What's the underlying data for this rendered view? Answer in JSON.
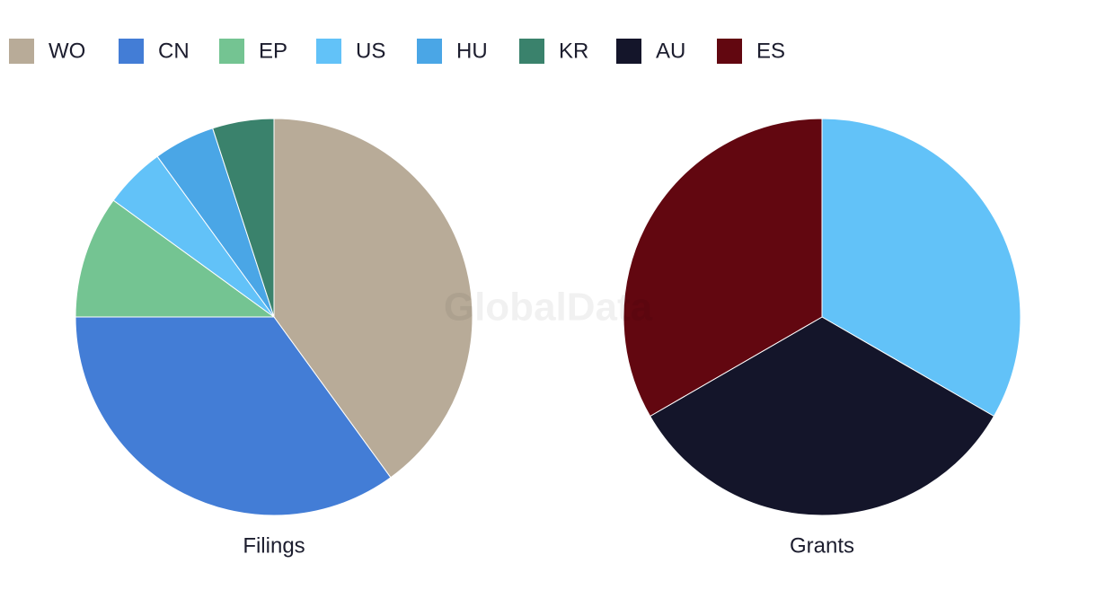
{
  "legend": [
    {
      "name": "WO",
      "color": "#b8ab98"
    },
    {
      "name": "CN",
      "color": "#437dd6"
    },
    {
      "name": "EP",
      "color": "#74c492"
    },
    {
      "name": "US",
      "color": "#62c2f8"
    },
    {
      "name": "HU",
      "color": "#4aa6e6"
    },
    {
      "name": "KR",
      "color": "#3a826c"
    },
    {
      "name": "AU",
      "color": "#14152a"
    },
    {
      "name": "ES",
      "color": "#620710"
    }
  ],
  "watermark": "GlobalData",
  "chart_data": [
    {
      "type": "pie",
      "title": "Filings",
      "categories": [
        "WO",
        "CN",
        "EP",
        "US",
        "HU",
        "KR"
      ],
      "values": [
        8,
        7,
        2,
        1,
        1,
        1
      ]
    },
    {
      "type": "pie",
      "title": "Grants",
      "categories": [
        "US",
        "AU",
        "ES"
      ],
      "values": [
        1,
        1,
        1
      ]
    }
  ]
}
